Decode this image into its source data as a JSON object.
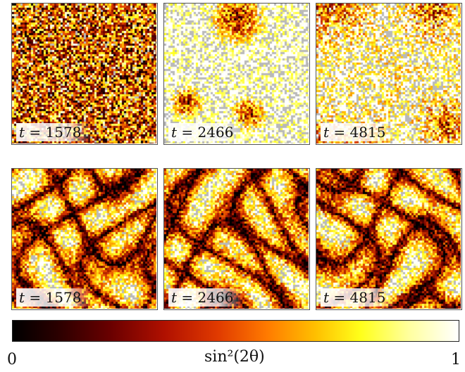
{
  "rows": [
    {
      "name": "top-row",
      "panels": [
        {
          "label_var": "t",
          "label_eq": "=",
          "time": "1578",
          "state": "disordered"
        },
        {
          "label_var": "t",
          "label_eq": "=",
          "time": "2466",
          "state": "coarsening-blobs"
        },
        {
          "label_var": "t",
          "label_eq": "=",
          "time": "4815",
          "state": "large-domains"
        }
      ]
    },
    {
      "name": "bottom-row",
      "panels": [
        {
          "label_var": "t",
          "label_eq": "=",
          "time": "1578",
          "state": "defect-stripes"
        },
        {
          "label_var": "t",
          "label_eq": "=",
          "time": "2466",
          "state": "defect-stripes"
        },
        {
          "label_var": "t",
          "label_eq": "=",
          "time": "4815",
          "state": "defect-stripes"
        }
      ]
    }
  ],
  "colorbar": {
    "min_label": "0",
    "max_label": "1",
    "quantity_label": "sin²(2θ)",
    "colormap": "hot",
    "colors": [
      "#000000",
      "#6a0000",
      "#e03a00",
      "#ffc000",
      "#ffff1a",
      "#ffffff"
    ]
  }
}
